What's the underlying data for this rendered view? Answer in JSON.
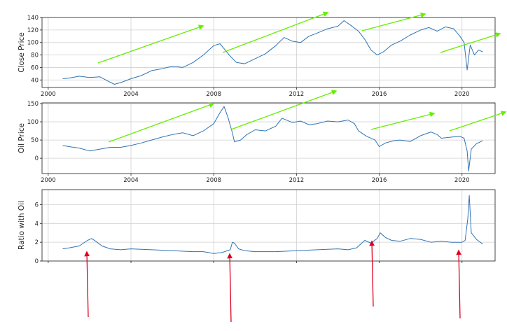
{
  "colors": {
    "series": "#2f73b4",
    "green_arrow": "#66ee00",
    "red_arrow": "#dd0022",
    "grid": "#d0d0d0"
  },
  "chart_data": [
    {
      "type": "line",
      "ylabel": "Close Price",
      "xlim": [
        1999.7,
        2021.6
      ],
      "ylim": [
        28,
        140
      ],
      "xticks": [
        2000,
        2004,
        2008,
        2012,
        2016,
        2020
      ],
      "xtick_labels": [
        "2000",
        "2004",
        "2008",
        "2012",
        "2016",
        "2020"
      ],
      "yticks": [
        40,
        60,
        80,
        100,
        120,
        140
      ],
      "ytick_labels": [
        "40",
        "60",
        "80",
        "100",
        "120",
        "140"
      ],
      "grid": true,
      "series": [
        {
          "x": [
            2000.7,
            2001.0,
            2001.5,
            2002.0,
            2002.5,
            2002.9,
            2003.2,
            2003.6,
            2004.0,
            2004.5,
            2005.0,
            2005.5,
            2006.0,
            2006.5,
            2007.0,
            2007.5,
            2008.0,
            2008.3,
            2008.5,
            2008.8,
            2009.1,
            2009.5,
            2010.0,
            2010.5,
            2011.0,
            2011.4,
            2011.8,
            2012.2,
            2012.6,
            2013.0,
            2013.5,
            2014.0,
            2014.3,
            2014.6,
            2015.0,
            2015.3,
            2015.6,
            2015.9,
            2016.2,
            2016.6,
            2017.0,
            2017.5,
            2018.0,
            2018.4,
            2018.8,
            2019.2,
            2019.6,
            2019.9,
            2020.1,
            2020.25,
            2020.4,
            2020.6,
            2020.8,
            2021.0
          ],
          "y": [
            42,
            43,
            46,
            44,
            45,
            38,
            33,
            37,
            42,
            47,
            55,
            58,
            62,
            60,
            68,
            80,
            95,
            98,
            90,
            78,
            68,
            66,
            74,
            82,
            95,
            108,
            102,
            100,
            110,
            115,
            122,
            126,
            135,
            128,
            118,
            105,
            88,
            80,
            85,
            96,
            102,
            112,
            120,
            124,
            118,
            125,
            122,
            110,
            100,
            56,
            96,
            80,
            88,
            85
          ]
        }
      ]
    },
    {
      "type": "line",
      "ylabel": "Oil Price",
      "xlim": [
        1999.7,
        2021.6
      ],
      "ylim": [
        -42,
        152
      ],
      "xticks": [
        2000,
        2004,
        2008,
        2012,
        2016,
        2020
      ],
      "xtick_labels": [
        "2000",
        "2004",
        "2008",
        "2012",
        "2016",
        "2020"
      ],
      "yticks": [
        0,
        50,
        100,
        150
      ],
      "ytick_labels": [
        "0",
        "50",
        "100",
        "150"
      ],
      "grid": true,
      "series": [
        {
          "x": [
            2000.7,
            2001.0,
            2001.5,
            2002.0,
            2002.5,
            2003.0,
            2003.5,
            2004.0,
            2004.5,
            2005.0,
            2005.5,
            2006.0,
            2006.5,
            2007.0,
            2007.5,
            2008.0,
            2008.3,
            2008.5,
            2008.7,
            2008.9,
            2009.0,
            2009.3,
            2009.6,
            2010.0,
            2010.5,
            2011.0,
            2011.3,
            2011.8,
            2012.2,
            2012.6,
            2013.0,
            2013.5,
            2014.0,
            2014.5,
            2014.8,
            2015.0,
            2015.4,
            2015.8,
            2016.0,
            2016.3,
            2016.7,
            2017.0,
            2017.5,
            2018.0,
            2018.5,
            2018.8,
            2019.0,
            2019.5,
            2019.9,
            2020.1,
            2020.25,
            2020.32,
            2020.45,
            2020.7,
            2021.0
          ],
          "y": [
            35,
            32,
            28,
            20,
            25,
            30,
            30,
            35,
            42,
            50,
            58,
            65,
            70,
            62,
            75,
            95,
            125,
            142,
            110,
            70,
            45,
            50,
            65,
            78,
            75,
            88,
            110,
            98,
            102,
            92,
            95,
            102,
            100,
            105,
            95,
            75,
            60,
            50,
            32,
            42,
            48,
            50,
            46,
            62,
            72,
            65,
            55,
            58,
            60,
            55,
            20,
            -35,
            25,
            40,
            48
          ]
        }
      ]
    },
    {
      "type": "line",
      "ylabel": "Ratio with Oil",
      "xlim": [
        1999.7,
        2021.6
      ],
      "ylim": [
        0,
        7.6
      ],
      "xticks": [
        2000,
        2004,
        2008,
        2012,
        2016,
        2020
      ],
      "yticks": [
        0,
        2,
        4,
        6
      ],
      "ytick_labels": [
        "0",
        "2",
        "4",
        "6"
      ],
      "grid": true,
      "series": [
        {
          "x": [
            2000.7,
            2001.0,
            2001.5,
            2001.9,
            2002.1,
            2002.3,
            2002.6,
            2003.0,
            2003.5,
            2004.0,
            2005.0,
            2006.0,
            2007.0,
            2007.5,
            2008.0,
            2008.4,
            2008.8,
            2008.9,
            2009.0,
            2009.2,
            2009.5,
            2010.0,
            2011.0,
            2012.0,
            2013.0,
            2014.0,
            2014.5,
            2014.9,
            2015.3,
            2015.6,
            2015.9,
            2016.05,
            2016.3,
            2016.6,
            2017.0,
            2017.5,
            2018.0,
            2018.5,
            2019.0,
            2019.5,
            2020.0,
            2020.15,
            2020.28,
            2020.35,
            2020.45,
            2020.7,
            2021.0
          ],
          "y": [
            1.3,
            1.4,
            1.6,
            2.2,
            2.4,
            2.1,
            1.6,
            1.3,
            1.2,
            1.3,
            1.2,
            1.1,
            1.0,
            1.0,
            0.8,
            0.9,
            1.2,
            2.0,
            1.9,
            1.3,
            1.1,
            1.0,
            1.0,
            1.1,
            1.2,
            1.3,
            1.2,
            1.4,
            2.2,
            1.9,
            2.4,
            3.0,
            2.5,
            2.2,
            2.1,
            2.4,
            2.3,
            2.0,
            2.1,
            2.0,
            2.0,
            2.2,
            4.5,
            7.0,
            3.0,
            2.3,
            1.8
          ]
        }
      ]
    }
  ]
}
